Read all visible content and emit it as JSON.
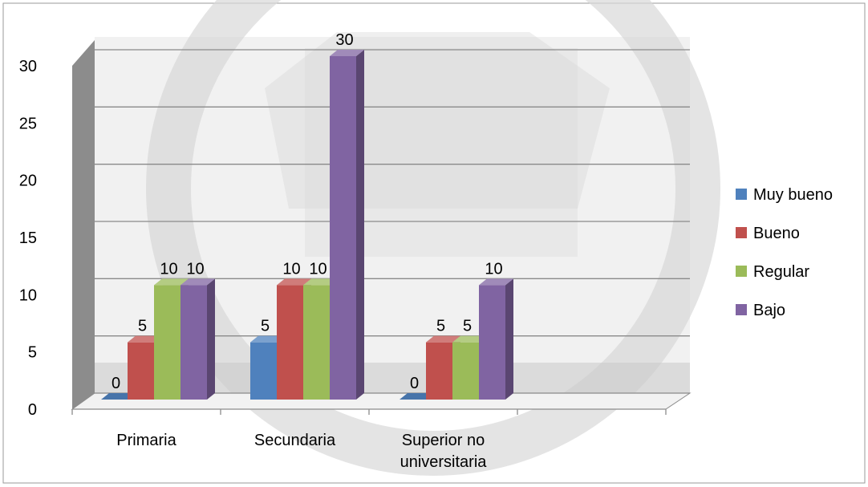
{
  "chart_data": {
    "type": "bar",
    "categories": [
      "Primaria",
      "Secundaria",
      "Superior no universitaria"
    ],
    "category_label_lines": [
      [
        "Primaria"
      ],
      [
        "Secundaria"
      ],
      [
        "Superior no",
        "universitaria"
      ]
    ],
    "series": [
      {
        "name": "Muy bueno",
        "values": [
          0,
          5,
          0
        ],
        "color": "#4f81bd"
      },
      {
        "name": "Bueno",
        "values": [
          5,
          10,
          5
        ],
        "color": "#c0504d"
      },
      {
        "name": "Regular",
        "values": [
          10,
          10,
          5
        ],
        "color": "#9bbb59"
      },
      {
        "name": "Bajo",
        "values": [
          10,
          30,
          10
        ],
        "color": "#8064a2"
      }
    ],
    "ylim": [
      0,
      30
    ],
    "yticks": [
      "0",
      "5",
      "10",
      "15",
      "20",
      "25",
      "30"
    ],
    "grid": true,
    "style": "3d",
    "legend_position": "right"
  }
}
